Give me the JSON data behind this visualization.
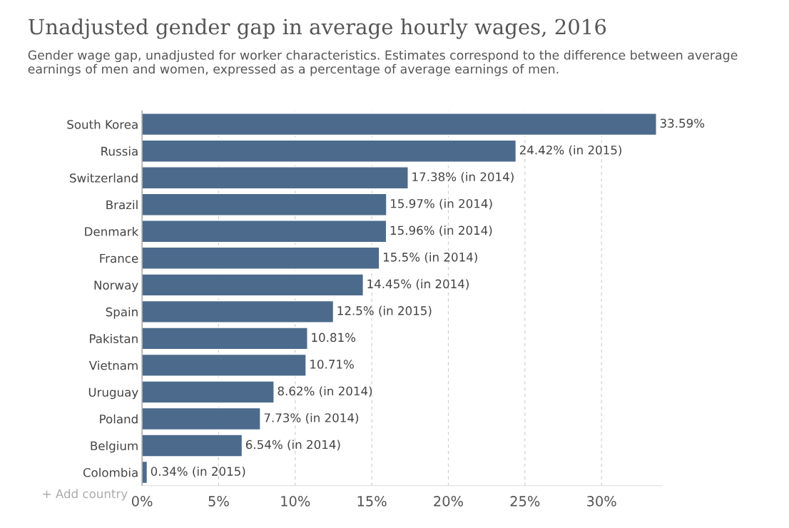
{
  "chart_data": {
    "type": "bar",
    "orientation": "horizontal",
    "title": "Unadjusted gender gap in average hourly wages, 2016",
    "subtitle": "Gender wage gap, unadjusted for worker characteristics. Estimates correspond to the difference between average earnings of men and women, expressed as a percentage of average earnings of men.",
    "categories": [
      "South Korea",
      "Russia",
      "Switzerland",
      "Brazil",
      "Denmark",
      "France",
      "Norway",
      "Spain",
      "Pakistan",
      "Vietnam",
      "Uruguay",
      "Poland",
      "Belgium",
      "Colombia"
    ],
    "values": [
      33.59,
      24.42,
      17.38,
      15.97,
      15.96,
      15.5,
      14.45,
      12.5,
      10.81,
      10.71,
      8.62,
      7.73,
      6.54,
      0.34
    ],
    "value_labels": [
      "33.59%",
      "24.42% (in 2015)",
      "17.38% (in 2014)",
      "15.97% (in 2014)",
      "15.96% (in 2014)",
      "15.5% (in 2014)",
      "14.45% (in 2014)",
      "12.5% (in 2015)",
      "10.81%",
      "10.71%",
      "8.62% (in 2014)",
      "7.73% (in 2014)",
      "6.54% (in 2014)",
      "0.34% (in 2015)"
    ],
    "color": "#4c6b8c",
    "xticks": [
      {
        "value": 0,
        "label": "0%"
      },
      {
        "value": 5,
        "label": "5%"
      },
      {
        "value": 10,
        "label": "10%"
      },
      {
        "value": 15,
        "label": "15%"
      },
      {
        "value": 20,
        "label": "20%"
      },
      {
        "value": 25,
        "label": "25%"
      },
      {
        "value": 30,
        "label": "30%"
      }
    ],
    "xlim": [
      0,
      34
    ],
    "grid": "x",
    "annotations": [
      "+ Add country"
    ]
  }
}
